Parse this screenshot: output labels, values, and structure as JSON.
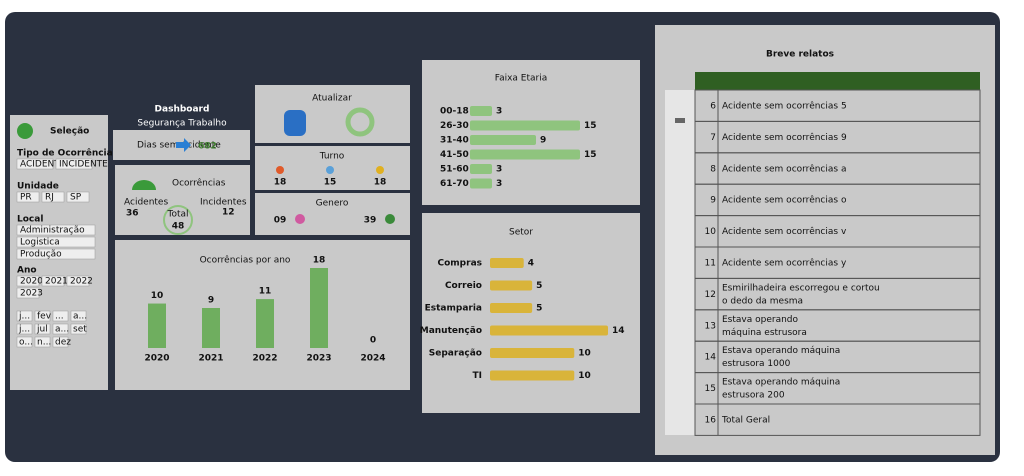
{
  "sidebar": {
    "title": "Seleção",
    "filters": [
      {
        "label": "Tipo de Ocorrência",
        "options": [
          "ACIDENTE",
          "INCIDENTE"
        ]
      },
      {
        "label": "Unidade",
        "options": [
          "PR",
          "RJ",
          "SP"
        ]
      },
      {
        "label": "Local",
        "options": [
          "Administração",
          "Logistica",
          "Produção"
        ]
      },
      {
        "label": "Ano",
        "options": [
          "2020",
          "2021",
          "2022",
          "2023"
        ]
      }
    ],
    "months": [
      "j...",
      "fev",
      "...",
      "a...",
      "j...",
      "jul",
      "a...",
      "set",
      "o...",
      "n...",
      "dez"
    ]
  },
  "header": {
    "title": "Dashboard",
    "subtitle": "Segurança Trabalho",
    "days_label": "Dias sem Acidente",
    "days_value": "682"
  },
  "ocorrencias": {
    "title": "Ocorrências",
    "acidentes_label": "Acidentes",
    "acidentes": "36",
    "total_label": "Total",
    "total": "48",
    "incidentes_label": "Incidentes",
    "incidentes": "12"
  },
  "atualizar": {
    "title": "Atualizar"
  },
  "turno": {
    "title": "Turno",
    "values": [
      "18",
      "15",
      "18"
    ]
  },
  "genero": {
    "title": "Genero",
    "values": [
      "09",
      "39"
    ]
  },
  "relatos": {
    "title": "Breve relatos",
    "rows": [
      [
        "6",
        "Acidente sem ocorrências 5"
      ],
      [
        "7",
        "Acidente sem ocorrências 9"
      ],
      [
        "8",
        "Acidente sem ocorrências a"
      ],
      [
        "9",
        "Acidente sem ocorrências o"
      ],
      [
        "10",
        "Acidente sem ocorrências v"
      ],
      [
        "11",
        "Acidente sem ocorrências y"
      ],
      [
        "12",
        "Esmirilhadeira escorregou e cortou o dedo da mesma"
      ],
      [
        "13",
        "Estava operando máquina estrusora"
      ],
      [
        "14",
        "Estava operando máquina estrusora 1000"
      ],
      [
        "15",
        "Estava operando máquina estrusora 200"
      ],
      [
        "16",
        "Total Geral"
      ]
    ]
  },
  "chart_data": [
    {
      "type": "bar",
      "orientation": "horizontal",
      "title": "Faixa Etaria",
      "categories": [
        "00-18",
        "26-30",
        "31-40",
        "41-50",
        "51-60",
        "61-70"
      ],
      "values": [
        3,
        15,
        9,
        15,
        3,
        3
      ],
      "color": "#8fc47e"
    },
    {
      "type": "bar",
      "orientation": "horizontal",
      "title": "Setor",
      "categories": [
        "Compras",
        "Correio",
        "Estamparia",
        "Manutenção",
        "Separação",
        "TI"
      ],
      "values": [
        4,
        5,
        5,
        14,
        10,
        10
      ],
      "color": "#d9b43a"
    },
    {
      "type": "bar",
      "orientation": "vertical",
      "title": "Ocorrências por ano",
      "categories": [
        "2020",
        "2021",
        "2022",
        "2023",
        "2024"
      ],
      "values": [
        10,
        9,
        11,
        18,
        0
      ],
      "color": "#6fae5f"
    }
  ]
}
